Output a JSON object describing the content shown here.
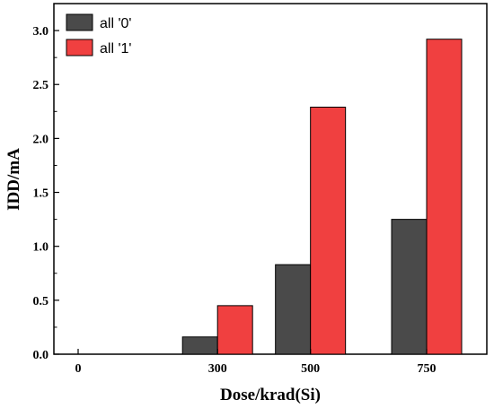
{
  "chart_data": {
    "type": "bar",
    "categories": [
      "0",
      "300",
      "500",
      "750"
    ],
    "series": [
      {
        "name": "all '0'",
        "values": [
          0,
          0.16,
          0.83,
          1.25
        ],
        "color": "#4a4a4a"
      },
      {
        "name": "all '1'",
        "values": [
          0,
          0.45,
          2.29,
          2.92
        ],
        "color": "#f04040"
      }
    ],
    "title": "",
    "xlabel": "Dose/krad(Si)",
    "ylabel": "IDD/mA",
    "ylim": [
      0,
      3.25
    ],
    "yticks": [
      "0.0",
      "0.5",
      "1.0",
      "1.5",
      "2.0",
      "2.5",
      "3.0"
    ],
    "grid": false,
    "legend_position": "top-left"
  }
}
